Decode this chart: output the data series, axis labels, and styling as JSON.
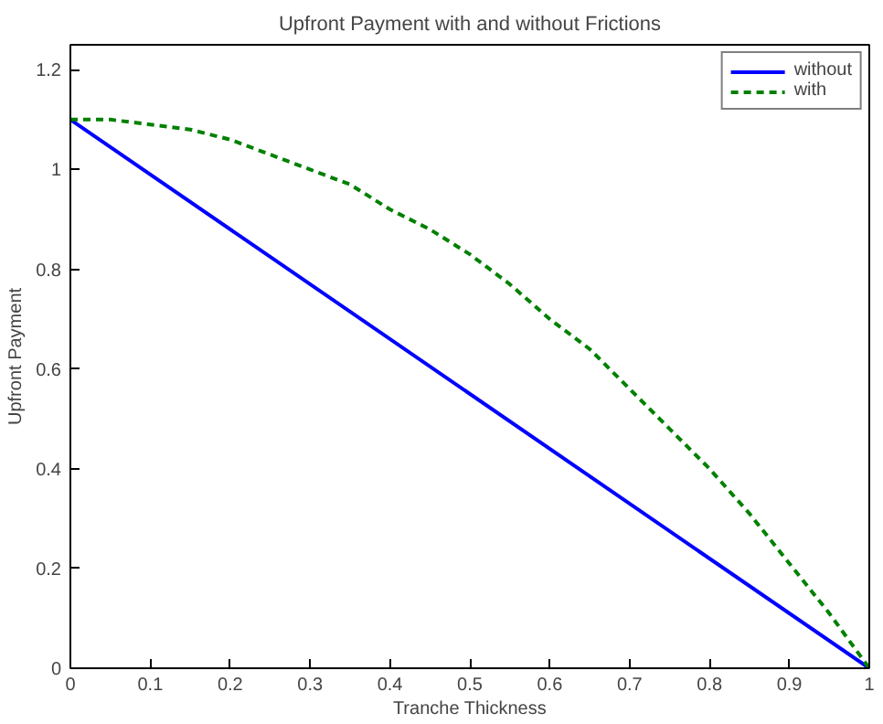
{
  "chart_data": {
    "type": "line",
    "title": "Upfront Payment with and without Frictions",
    "xlabel": "Tranche Thickness",
    "ylabel": "Upfront Payment",
    "xlim": [
      0,
      1
    ],
    "ylim": [
      0,
      1.25
    ],
    "xticks": [
      0,
      0.1,
      0.2,
      0.3,
      0.4,
      0.5,
      0.6,
      0.7,
      0.8,
      0.9,
      1
    ],
    "yticks": [
      0,
      0.2,
      0.4,
      0.6,
      0.8,
      1,
      1.2
    ],
    "grid": false,
    "legend": "top right",
    "marker": "none",
    "series": [
      {
        "name": "without",
        "color": "#0000ff",
        "line_style": "solid",
        "x": [
          0,
          1
        ],
        "values": [
          1.1,
          0
        ]
      },
      {
        "name": "with",
        "color": "#008000",
        "line_style": "dashed",
        "x": [
          0,
          0.05,
          0.1,
          0.15,
          0.2,
          0.25,
          0.3,
          0.35,
          0.4,
          0.45,
          0.5,
          0.55,
          0.6,
          0.65,
          0.7,
          0.75,
          0.8,
          0.85,
          0.9,
          0.95,
          1
        ],
        "values": [
          1.1,
          1.1,
          1.09,
          1.08,
          1.06,
          1.03,
          1.0,
          0.97,
          0.92,
          0.88,
          0.83,
          0.77,
          0.7,
          0.64,
          0.56,
          0.48,
          0.4,
          0.31,
          0.21,
          0.11,
          0
        ]
      }
    ]
  }
}
